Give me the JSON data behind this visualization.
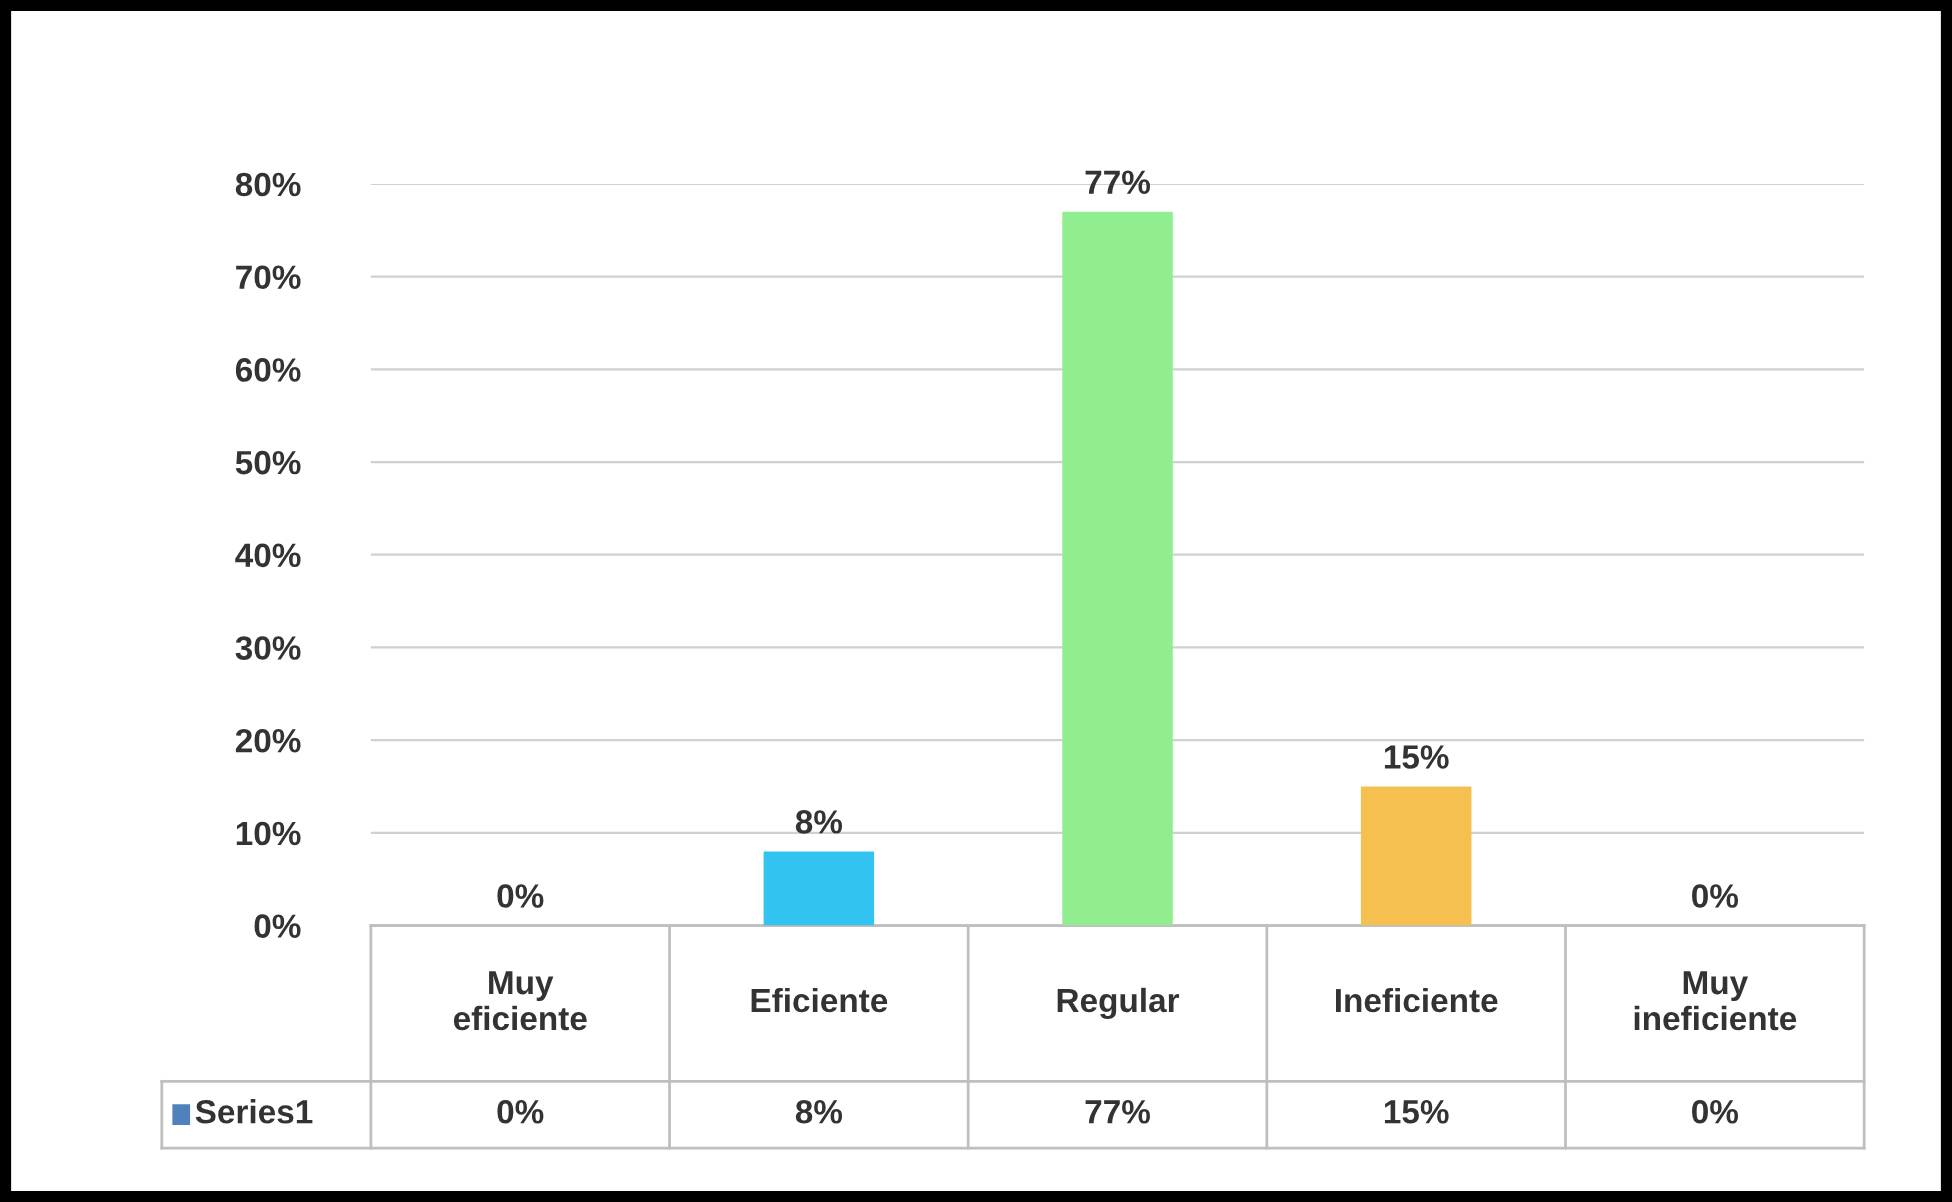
{
  "chart_data": {
    "type": "bar",
    "categories": [
      "Muy eficiente",
      "Eficiente",
      "Regular",
      "Ineficiente",
      "Muy ineficiente"
    ],
    "series": [
      {
        "name": "Series1",
        "color": "#4f81bd",
        "colors": [
          "#c00000",
          "#33c3f0",
          "#90ee90",
          "#f5c050",
          "#1f5fc8"
        ],
        "values": [
          0,
          8,
          77,
          15,
          0
        ],
        "value_labels": [
          "0%",
          "8%",
          "77%",
          "15%",
          "0%"
        ]
      }
    ],
    "ylim": [
      0,
      80
    ],
    "yticks": [
      {
        "value": 0,
        "label": "0%"
      },
      {
        "value": 10,
        "label": "10%"
      },
      {
        "value": 20,
        "label": "20%"
      },
      {
        "value": 30,
        "label": "30%"
      },
      {
        "value": 40,
        "label": "40%"
      },
      {
        "value": 50,
        "label": "50%"
      },
      {
        "value": 60,
        "label": "60%"
      },
      {
        "value": 70,
        "label": "70%"
      },
      {
        "value": 80,
        "label": "80%"
      }
    ],
    "grid": "y"
  }
}
